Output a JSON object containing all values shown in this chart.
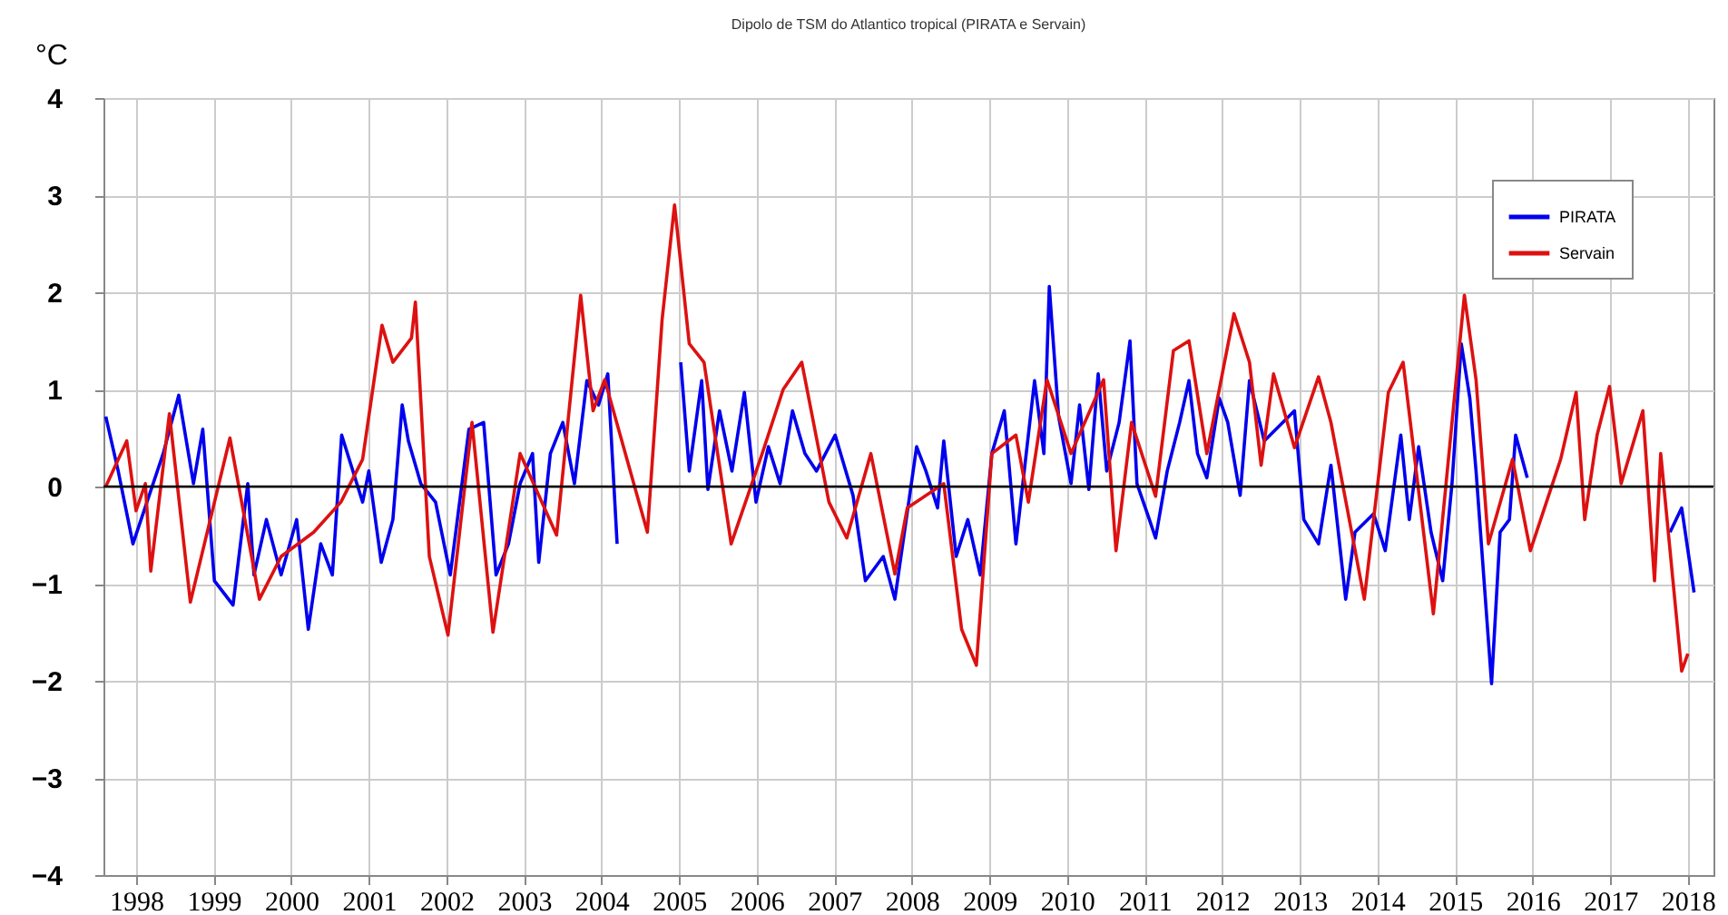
{
  "chart_data": {
    "type": "line",
    "title": "Dipolo de TSM do Atlantico tropical (PIRATA e Servain)",
    "ylabel": "°C",
    "xlim": [
      1997.58,
      2018.33
    ],
    "ylim": [
      -4,
      4
    ],
    "xticks": [
      1998,
      1999,
      2000,
      2001,
      2002,
      2003,
      2004,
      2005,
      2006,
      2007,
      2008,
      2009,
      2010,
      2011,
      2012,
      2013,
      2014,
      2015,
      2016,
      2017,
      2018
    ],
    "yticks": [
      -4,
      -3,
      -2,
      -1,
      0,
      1,
      2,
      3,
      4
    ],
    "grid": true,
    "legend": "top right",
    "ref_lines": [
      {
        "axis": "y",
        "value": 0,
        "color": "#000000"
      }
    ],
    "series": [
      {
        "name": "PIRATA",
        "color": "#0000ee",
        "x": [
          1997.61,
          1997.77,
          1997.96,
          1998.35,
          1998.55,
          1998.74,
          1998.86,
          1999.01,
          1999.25,
          1999.44,
          1999.52,
          1999.68,
          1999.87,
          2000.07,
          2000.22,
          2000.38,
          2000.53,
          2000.65,
          2000.92,
          2001.0,
          2001.16,
          2001.31,
          2001.43,
          2001.51,
          2001.67,
          2001.86,
          2002.05,
          2002.29,
          2002.48,
          2002.64,
          2002.8,
          2002.95,
          2003.11,
          2003.19,
          2003.34,
          2003.5,
          2003.65,
          2003.81,
          2003.96,
          2004.08,
          2004.2,
          2004.6,
          2005.02,
          2005.13,
          2005.29,
          2005.37,
          2005.52,
          2005.68,
          2005.84,
          2005.99,
          2006.15,
          2006.3,
          2006.46,
          2006.62,
          2006.77,
          2007.01,
          2007.24,
          2007.4,
          2007.63,
          2007.78,
          2008.06,
          2008.18,
          2008.33,
          2008.41,
          2008.57,
          2008.72,
          2008.88,
          2009.03,
          2009.19,
          2009.34,
          2009.58,
          2009.7,
          2009.77,
          2009.89,
          2010.05,
          2010.16,
          2010.28,
          2010.4,
          2010.51,
          2010.67,
          2010.81,
          2010.9,
          2011.06,
          2011.14,
          2011.29,
          2011.45,
          2011.57,
          2011.68,
          2011.8,
          2011.96,
          2012.07,
          2012.23,
          2012.35,
          2012.54,
          2012.93,
          2013.05,
          2013.24,
          2013.4,
          2013.59,
          2013.71,
          2013.95,
          2014.1,
          2014.3,
          2014.41,
          2014.53,
          2014.69,
          2014.84,
          2014.96,
          2015.08,
          2015.19,
          2015.27,
          2015.47,
          2015.58,
          2015.7,
          2015.78,
          2015.93,
          2016.9,
          2017.77,
          2017.92,
          2018.08
        ],
        "values": [
          0.72,
          0.16,
          -0.59,
          0.34,
          0.94,
          0.03,
          0.59,
          -0.97,
          -1.22,
          0.03,
          -0.91,
          -0.34,
          -0.91,
          -0.34,
          -1.47,
          -0.59,
          -0.91,
          0.53,
          -0.16,
          0.16,
          -0.78,
          -0.34,
          0.84,
          0.47,
          0.03,
          -0.16,
          -0.91,
          0.59,
          0.66,
          -0.91,
          -0.59,
          0.03,
          0.34,
          -0.78,
          0.34,
          0.66,
          0.03,
          1.09,
          0.84,
          1.16,
          -0.59,
          null,
          1.28,
          0.16,
          1.09,
          -0.03,
          0.78,
          0.16,
          0.97,
          -0.16,
          0.41,
          0.03,
          0.78,
          0.34,
          0.16,
          0.53,
          -0.09,
          -0.97,
          -0.72,
          -1.16,
          0.41,
          0.16,
          -0.22,
          0.47,
          -0.72,
          -0.34,
          -0.91,
          0.34,
          0.78,
          -0.59,
          1.09,
          0.34,
          2.06,
          0.72,
          0.03,
          0.84,
          -0.03,
          1.16,
          0.16,
          0.66,
          1.5,
          0.03,
          -0.34,
          -0.53,
          0.16,
          0.66,
          1.09,
          0.34,
          0.09,
          0.91,
          0.66,
          -0.09,
          1.09,
          0.47,
          0.78,
          -0.34,
          -0.59,
          0.22,
          -1.16,
          -0.47,
          -0.28,
          -0.66,
          0.53,
          -0.34,
          0.41,
          -0.47,
          -0.97,
          0.03,
          1.47,
          0.91,
          0.16,
          -2.03,
          -0.47,
          -0.34,
          0.53,
          0.09,
          null,
          -0.47,
          -0.22,
          -1.09
        ]
      },
      {
        "name": "Servain",
        "color": "#dd1111",
        "x": [
          1997.61,
          1997.88,
          1998.0,
          1998.12,
          1998.19,
          1998.43,
          1998.7,
          1999.21,
          1999.59,
          1999.87,
          2000.29,
          2000.64,
          2000.92,
          2001.17,
          2001.31,
          2001.55,
          2001.6,
          2001.78,
          2002.02,
          2002.33,
          2002.6,
          2002.95,
          2003.42,
          2003.73,
          2003.89,
          2004.04,
          2004.59,
          2004.78,
          2004.94,
          2005.13,
          2005.32,
          2005.67,
          2006.07,
          2006.34,
          2006.58,
          2006.93,
          2007.16,
          2007.47,
          2007.78,
          2007.94,
          2008.41,
          2008.64,
          2008.83,
          2009.03,
          2009.34,
          2009.5,
          2009.74,
          2010.05,
          2010.47,
          2010.63,
          2010.83,
          2011.14,
          2011.37,
          2011.57,
          2011.8,
          2012.15,
          2012.35,
          2012.5,
          2012.66,
          2012.93,
          2013.24,
          2013.4,
          2013.83,
          2014.14,
          2014.33,
          2014.72,
          2015.12,
          2015.27,
          2015.43,
          2015.74,
          2015.97,
          2016.36,
          2016.56,
          2016.67,
          2016.83,
          2016.99,
          2017.14,
          2017.42,
          2017.57,
          2017.65,
          2017.92,
          2018.0
        ],
        "values": [
          0,
          0.47,
          -0.25,
          0.03,
          -0.87,
          0.75,
          -1.19,
          0.5,
          -1.16,
          -0.72,
          -0.47,
          -0.16,
          0.28,
          1.66,
          1.28,
          1.53,
          1.9,
          -0.72,
          -1.53,
          0.66,
          -1.5,
          0.34,
          -0.5,
          1.97,
          0.78,
          1.1,
          -0.47,
          1.72,
          2.9,
          1.47,
          1.28,
          -0.59,
          0.34,
          1.0,
          1.28,
          -0.16,
          -0.53,
          0.34,
          -0.9,
          -0.22,
          0.03,
          -1.47,
          -1.84,
          0.34,
          0.53,
          -0.16,
          1.1,
          0.34,
          1.1,
          -0.66,
          0.66,
          -0.1,
          1.4,
          1.5,
          0.34,
          1.78,
          1.28,
          0.22,
          1.16,
          0.4,
          1.13,
          0.66,
          -1.16,
          0.97,
          1.28,
          -1.31,
          1.97,
          1.1,
          -0.59,
          0.28,
          -0.66,
          0.28,
          0.97,
          -0.34,
          0.53,
          1.03,
          0.03,
          0.78,
          -0.97,
          0.34,
          -1.9,
          -1.72
        ]
      }
    ]
  }
}
